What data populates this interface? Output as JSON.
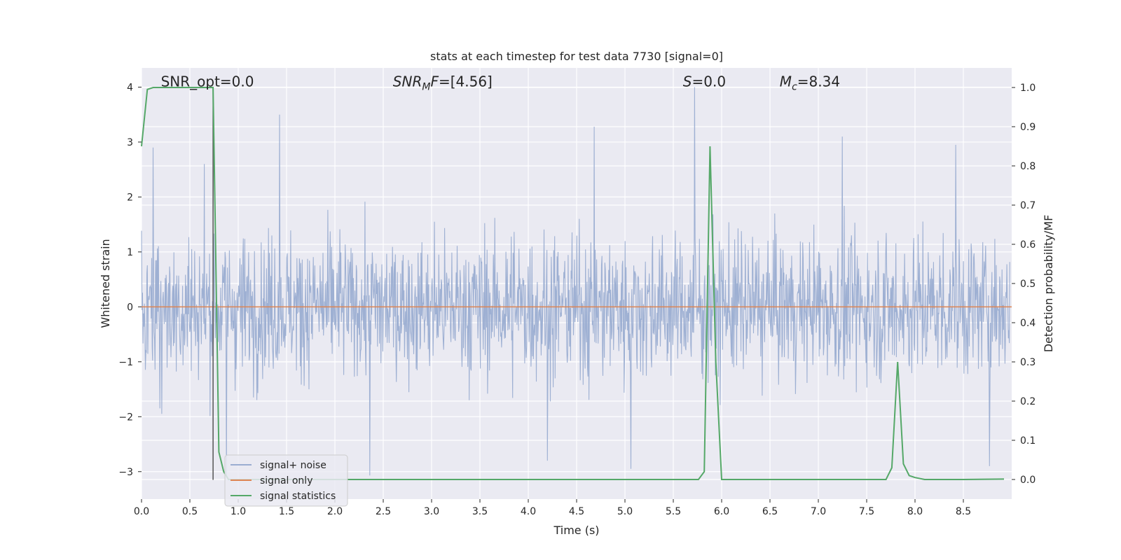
{
  "chart_data": {
    "type": "line",
    "title": "stats at each timestep for test data 7730 [signal=0]",
    "xlabel": "Time (s)",
    "ylabel": "Whitened strain",
    "y2label": "Detection probability/MF",
    "xlim": [
      0.0,
      9.0
    ],
    "ylim": [
      -3.5,
      4.35
    ],
    "y2lim": [
      -0.05,
      1.05
    ],
    "xticks": [
      "0.0",
      "0.5",
      "1.0",
      "1.5",
      "2.0",
      "2.5",
      "3.0",
      "3.5",
      "4.0",
      "4.5",
      "5.0",
      "5.5",
      "6.0",
      "6.5",
      "7.0",
      "7.5",
      "8.0",
      "8.5"
    ],
    "xtick_values": [
      0.0,
      0.5,
      1.0,
      1.5,
      2.0,
      2.5,
      3.0,
      3.5,
      4.0,
      4.5,
      5.0,
      5.5,
      6.0,
      6.5,
      7.0,
      7.5,
      8.0,
      8.5
    ],
    "yticks": [
      "−3",
      "−2",
      "−1",
      "0",
      "1",
      "2",
      "3",
      "4"
    ],
    "ytick_values": [
      -3,
      -2,
      -1,
      0,
      1,
      2,
      3,
      4
    ],
    "y2ticks": [
      "0.0",
      "0.1",
      "0.2",
      "0.3",
      "0.4",
      "0.5",
      "0.6",
      "0.7",
      "0.8",
      "0.9",
      "1.0"
    ],
    "y2tick_values": [
      0.0,
      0.1,
      0.2,
      0.3,
      0.4,
      0.5,
      0.6,
      0.7,
      0.8,
      0.9,
      1.0
    ],
    "grid": true,
    "legend_position": "bottom-left",
    "annotations": [
      {
        "text": "SNR_opt=0.0",
        "x": 0.2,
        "y": 4.1
      },
      {
        "text": "SNR_MF=[4.56]",
        "x": 2.6,
        "y": 4.1
      },
      {
        "text": "S=0.0",
        "x": 5.6,
        "y": 4.1
      },
      {
        "text": "M_c=8.34",
        "x": 6.6,
        "y": 4.1
      }
    ],
    "vline": {
      "x": 0.74,
      "ymin": -3.15,
      "ymax": 4.0
    },
    "series": [
      {
        "name": "signal+ noise",
        "color": "#9aadd1",
        "axis": "left",
        "kind": "noise",
        "points": 1800,
        "baseline_amplitude": 1.1,
        "spikes": [
          {
            "x": 1.43,
            "y": 3.5
          },
          {
            "x": 5.72,
            "y": 4.0
          },
          {
            "x": 4.68,
            "y": 3.28
          },
          {
            "x": 0.65,
            "y": 2.6
          },
          {
            "x": 7.25,
            "y": 3.1
          },
          {
            "x": 0.12,
            "y": 2.9
          },
          {
            "x": 8.42,
            "y": 2.95
          },
          {
            "x": 2.36,
            "y": -3.07
          },
          {
            "x": 5.06,
            "y": -2.95
          },
          {
            "x": 0.88,
            "y": -3.1
          },
          {
            "x": 4.2,
            "y": -2.8
          },
          {
            "x": 8.77,
            "y": -2.9
          }
        ]
      },
      {
        "name": "signal only",
        "color": "#dd8452",
        "axis": "left",
        "kind": "flat",
        "y": 0.0
      },
      {
        "name": "signal statistics",
        "color": "#55a868",
        "axis": "right",
        "kind": "line",
        "x": [
          0.0,
          0.06,
          0.12,
          0.2,
          0.3,
          0.4,
          0.5,
          0.6,
          0.7,
          0.74,
          0.8,
          0.85,
          0.9,
          1.0,
          2.0,
          3.0,
          4.0,
          5.0,
          5.5,
          5.76,
          5.82,
          5.88,
          5.94,
          6.0,
          6.5,
          7.0,
          7.5,
          7.7,
          7.76,
          7.82,
          7.88,
          7.94,
          8.0,
          8.1,
          8.5,
          8.92
        ],
        "y": [
          0.85,
          0.995,
          1.0,
          1.0,
          1.0,
          1.0,
          1.0,
          1.0,
          1.0,
          1.0,
          0.07,
          0.02,
          0.0,
          0.0,
          0.0,
          0.0,
          0.0,
          0.0,
          0.0,
          0.0,
          0.02,
          0.85,
          0.3,
          0.0,
          0.0,
          0.0,
          0.0,
          0.0,
          0.03,
          0.3,
          0.04,
          0.01,
          0.005,
          0.0,
          0.0,
          0.001
        ]
      }
    ]
  }
}
